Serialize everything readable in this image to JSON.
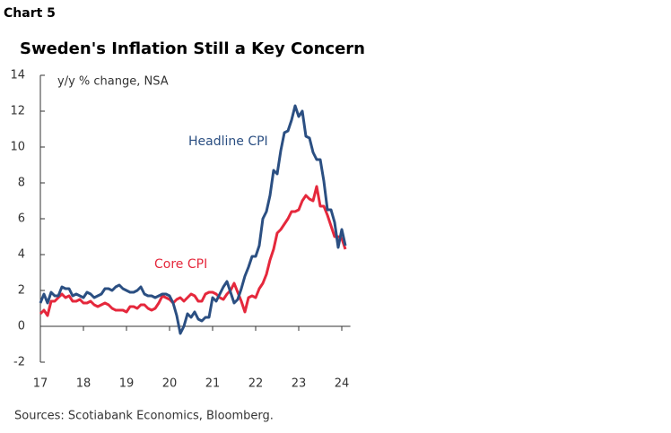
{
  "chart_data": {
    "type": "line",
    "chart_label": "Chart 5",
    "title": "Sweden's Inflation Still a Key Concern",
    "y_label": "y/y % change, NSA",
    "source": "Sources: Scotiabank Economics, Bloomberg.",
    "annotations": [
      "Headline CPI",
      "Core CPI"
    ],
    "xlim": [
      17,
      24.2
    ],
    "xticks": [
      17,
      18,
      19,
      20,
      21,
      22,
      23,
      24
    ],
    "ylim": [
      -2,
      14
    ],
    "yticks": [
      -2,
      0,
      2,
      4,
      6,
      8,
      10,
      12,
      14
    ],
    "x": [
      17,
      17.083,
      17.167,
      17.25,
      17.333,
      17.417,
      17.5,
      17.583,
      17.667,
      17.75,
      17.833,
      17.917,
      18,
      18.083,
      18.167,
      18.25,
      18.333,
      18.417,
      18.5,
      18.583,
      18.667,
      18.75,
      18.833,
      18.917,
      19,
      19.083,
      19.167,
      19.25,
      19.333,
      19.417,
      19.5,
      19.583,
      19.667,
      19.75,
      19.833,
      19.917,
      20,
      20.083,
      20.167,
      20.25,
      20.333,
      20.417,
      20.5,
      20.583,
      20.667,
      20.75,
      20.833,
      20.917,
      21,
      21.083,
      21.167,
      21.25,
      21.333,
      21.417,
      21.5,
      21.583,
      21.667,
      21.75,
      21.833,
      21.917,
      22,
      22.083,
      22.167,
      22.25,
      22.333,
      22.417,
      22.5,
      22.583,
      22.667,
      22.75,
      22.833,
      22.917,
      23,
      23.083,
      23.167,
      23.25,
      23.333,
      23.417,
      23.5,
      23.583,
      23.667,
      23.75,
      23.833,
      23.917,
      24,
      24.083
    ],
    "series": [
      {
        "name": "Headline CPI",
        "color": "#2b4f82",
        "values": [
          1.3,
          1.8,
          1.3,
          1.9,
          1.7,
          1.7,
          2.2,
          2.1,
          2.1,
          1.7,
          1.8,
          1.7,
          1.6,
          1.9,
          1.8,
          1.6,
          1.7,
          1.8,
          2.1,
          2.1,
          2.0,
          2.2,
          2.3,
          2.1,
          2.0,
          1.9,
          1.9,
          2.0,
          2.2,
          1.8,
          1.7,
          1.7,
          1.6,
          1.7,
          1.8,
          1.8,
          1.7,
          1.3,
          0.6,
          -0.4,
          0.0,
          0.7,
          0.5,
          0.8,
          0.4,
          0.3,
          0.5,
          0.5,
          1.6,
          1.4,
          1.8,
          2.2,
          2.5,
          1.9,
          1.3,
          1.5,
          2.1,
          2.8,
          3.3,
          3.9,
          3.9,
          4.5,
          6.0,
          6.4,
          7.3,
          8.7,
          8.5,
          9.8,
          10.8,
          10.9,
          11.5,
          12.3,
          11.7,
          12.0,
          10.6,
          10.5,
          9.7,
          9.3,
          9.3,
          8.1,
          6.5,
          6.5,
          5.8,
          4.4,
          5.4,
          4.5
        ]
      },
      {
        "name": "Core CPI",
        "color": "#e5283c",
        "values": [
          0.7,
          0.9,
          0.6,
          1.4,
          1.4,
          1.6,
          1.8,
          1.6,
          1.7,
          1.4,
          1.4,
          1.5,
          1.3,
          1.3,
          1.4,
          1.2,
          1.1,
          1.2,
          1.3,
          1.2,
          1.0,
          0.9,
          0.9,
          0.9,
          0.8,
          1.1,
          1.1,
          1.0,
          1.2,
          1.2,
          1.0,
          0.9,
          1.0,
          1.3,
          1.7,
          1.6,
          1.5,
          1.3,
          1.5,
          1.6,
          1.4,
          1.6,
          1.8,
          1.7,
          1.4,
          1.4,
          1.8,
          1.9,
          1.9,
          1.8,
          1.6,
          1.5,
          1.8,
          2.0,
          2.4,
          1.9,
          1.4,
          0.8,
          1.6,
          1.7,
          1.6,
          2.1,
          2.4,
          2.9,
          3.7,
          4.3,
          5.2,
          5.4,
          5.7,
          6.0,
          6.4,
          6.4,
          6.5,
          7.0,
          7.3,
          7.1,
          7.0,
          7.8,
          6.7,
          6.7,
          6.2,
          5.6,
          5.0,
          5.0,
          4.9,
          4.3
        ]
      }
    ]
  }
}
